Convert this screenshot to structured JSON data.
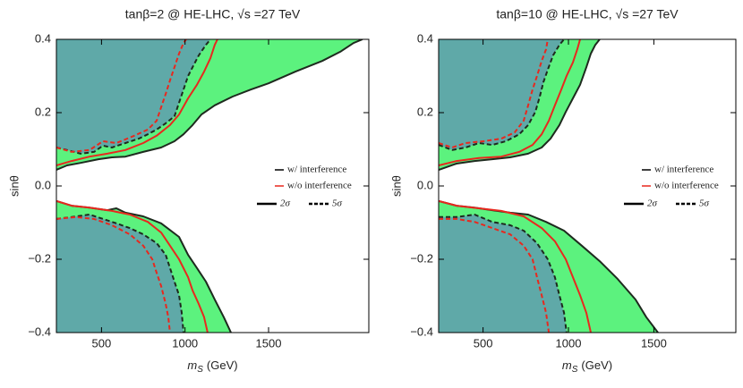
{
  "chart_data": [
    {
      "type": "contour",
      "title": "tanβ=2 @ HE-LHC, √s =27 TeV",
      "xlabel_symbol": "m",
      "xlabel_subscript": "S",
      "xlabel_unit": "(GeV)",
      "ylabel": "sinθ",
      "xlim": [
        230,
        2100
      ],
      "xticks": [
        500,
        1000,
        1500
      ],
      "ylim": [
        -0.4,
        0.4
      ],
      "yticks": [
        {
          "value": -0.4,
          "label": "−0.4"
        },
        {
          "value": -0.2,
          "label": "−0.2"
        },
        {
          "value": 0,
          "label": "0.0"
        },
        0.2,
        0.4
      ],
      "legend": [
        {
          "label": "w/  interference",
          "color": "#000000",
          "style": "solid"
        },
        {
          "label": "w/o interference",
          "color": "#e8281e",
          "style": "solid"
        },
        {
          "label": "2σ",
          "color": "#000000",
          "style": "solid"
        },
        {
          "label": "5σ",
          "color": "#000000",
          "style": "dashed"
        }
      ],
      "series": [
        {
          "color": "#1e2a1e",
          "fill": "#5cf27e",
          "fill_to": "top",
          "style": "solid",
          "x": [
            230,
            294,
            375,
            482,
            562,
            643,
            750,
            857,
            937,
            991,
            1045,
            1098,
            1178,
            1285,
            1393,
            1500,
            1661,
            1821,
            1929,
            2009,
            2062
          ],
          "values": [
            0.044,
            0.056,
            0.063,
            0.073,
            0.078,
            0.08,
            0.093,
            0.105,
            0.122,
            0.141,
            0.166,
            0.195,
            0.22,
            0.244,
            0.263,
            0.28,
            0.312,
            0.341,
            0.366,
            0.39,
            0.4
          ]
        },
        {
          "color": "#1e2a1e",
          "fill": "#5fa9a8",
          "fill_to": "top",
          "style": "dashed",
          "x": [
            230,
            294,
            375,
            455,
            509,
            562,
            643,
            723,
            777,
            830,
            884,
            937,
            964,
            991,
            1018,
            1045,
            1082,
            1125,
            1152
          ],
          "values": [
            0.105,
            0.098,
            0.088,
            0.093,
            0.11,
            0.105,
            0.117,
            0.129,
            0.141,
            0.154,
            0.171,
            0.19,
            0.227,
            0.263,
            0.3,
            0.324,
            0.356,
            0.385,
            0.4
          ]
        },
        {
          "color": "#1e2a1e",
          "fill": "#5cf27e",
          "fill_to": "bottom",
          "style": "solid",
          "x": [
            230,
            321,
            428,
            535,
            589,
            643,
            750,
            857,
            964,
            1018,
            1071,
            1125,
            1178,
            1232,
            1275
          ],
          "values": [
            -0.041,
            -0.054,
            -0.059,
            -0.066,
            -0.061,
            -0.073,
            -0.083,
            -0.102,
            -0.139,
            -0.188,
            -0.224,
            -0.261,
            -0.31,
            -0.358,
            -0.4
          ]
        },
        {
          "color": "#1e2a1e",
          "fill": "#5fa9a8",
          "fill_to": "bottom",
          "style": "dashed",
          "x": [
            230,
            321,
            428,
            509,
            589,
            669,
            750,
            830,
            884,
            910,
            937,
            964,
            980,
            991
          ],
          "values": [
            -0.09,
            -0.085,
            -0.078,
            -0.09,
            -0.102,
            -0.115,
            -0.132,
            -0.156,
            -0.188,
            -0.224,
            -0.261,
            -0.298,
            -0.346,
            -0.4
          ]
        },
        {
          "color": "#e8281e",
          "style": "solid",
          "x": [
            230,
            321,
            428,
            535,
            643,
            750,
            830,
            910,
            964,
            1018,
            1071,
            1114,
            1152,
            1178,
            1194
          ],
          "values": [
            0.056,
            0.068,
            0.08,
            0.088,
            0.098,
            0.117,
            0.137,
            0.166,
            0.195,
            0.239,
            0.276,
            0.312,
            0.349,
            0.385,
            0.4
          ]
        },
        {
          "color": "#e8281e",
          "style": "dashed",
          "x": [
            230,
            321,
            428,
            509,
            589,
            696,
            777,
            830,
            857,
            884,
            910,
            937,
            964,
            991,
            1007
          ],
          "values": [
            0.105,
            0.093,
            0.098,
            0.122,
            0.117,
            0.137,
            0.154,
            0.178,
            0.215,
            0.251,
            0.288,
            0.324,
            0.361,
            0.39,
            0.4
          ]
        },
        {
          "color": "#e8281e",
          "style": "solid",
          "x": [
            230,
            321,
            428,
            562,
            669,
            777,
            857,
            910,
            964,
            1018,
            1045,
            1082,
            1114,
            1135
          ],
          "values": [
            -0.041,
            -0.054,
            -0.059,
            -0.068,
            -0.078,
            -0.098,
            -0.127,
            -0.163,
            -0.2,
            -0.249,
            -0.285,
            -0.322,
            -0.358,
            -0.4
          ]
        },
        {
          "color": "#e8281e",
          "style": "dashed",
          "x": [
            230,
            348,
            455,
            562,
            669,
            750,
            804,
            830,
            857,
            884,
            900,
            910
          ],
          "values": [
            -0.09,
            -0.085,
            -0.09,
            -0.107,
            -0.132,
            -0.163,
            -0.2,
            -0.237,
            -0.273,
            -0.322,
            -0.358,
            -0.4
          ]
        }
      ]
    },
    {
      "type": "contour",
      "title": "tanβ=10 @ HE-LHC, √s =27 TeV",
      "xlabel_symbol": "m",
      "xlabel_subscript": "S",
      "xlabel_unit": "(GeV)",
      "ylabel": "sinθ",
      "xlim": [
        240,
        1980
      ],
      "xticks": [
        500,
        1000,
        1500
      ],
      "ylim": [
        -0.4,
        0.4
      ],
      "yticks": [
        {
          "value": -0.4,
          "label": "−0.4"
        },
        {
          "value": -0.2,
          "label": "−0.2"
        },
        {
          "value": 0,
          "label": "0.0"
        },
        0.2,
        0.4
      ],
      "legend": [
        {
          "label": "w/  interference",
          "color": "#000000",
          "style": "solid"
        },
        {
          "label": "w/o interference",
          "color": "#e8281e",
          "style": "solid"
        },
        {
          "label": "2σ",
          "color": "#000000",
          "style": "solid"
        },
        {
          "label": "5σ",
          "color": "#000000",
          "style": "dashed"
        }
      ],
      "series": [
        {
          "color": "#1e2a1e",
          "fill": "#5cf27e",
          "fill_to": "top",
          "style": "solid",
          "x": [
            240,
            345,
            450,
            554,
            659,
            764,
            843,
            895,
            947,
            984,
            1026,
            1068,
            1105,
            1131,
            1157,
            1183
          ],
          "values": [
            0.044,
            0.061,
            0.068,
            0.073,
            0.078,
            0.088,
            0.105,
            0.129,
            0.166,
            0.202,
            0.239,
            0.276,
            0.324,
            0.361,
            0.385,
            0.4
          ]
        },
        {
          "color": "#1e2a1e",
          "fill": "#5fa9a8",
          "fill_to": "top",
          "style": "dashed",
          "x": [
            240,
            319,
            397,
            476,
            554,
            633,
            712,
            764,
            806,
            832,
            853,
            879,
            910,
            947,
            974
          ],
          "values": [
            0.112,
            0.098,
            0.105,
            0.117,
            0.112,
            0.122,
            0.141,
            0.166,
            0.202,
            0.244,
            0.283,
            0.317,
            0.356,
            0.385,
            0.4
          ]
        },
        {
          "color": "#1e2a1e",
          "fill": "#5cf27e",
          "fill_to": "bottom",
          "style": "solid",
          "x": [
            240,
            345,
            450,
            554,
            659,
            764,
            869,
            974,
            1078,
            1183,
            1288,
            1393,
            1456,
            1524
          ],
          "values": [
            -0.041,
            -0.054,
            -0.059,
            -0.066,
            -0.073,
            -0.078,
            -0.098,
            -0.122,
            -0.163,
            -0.205,
            -0.254,
            -0.31,
            -0.358,
            -0.4
          ]
        },
        {
          "color": "#1e2a1e",
          "fill": "#5fa9a8",
          "fill_to": "bottom",
          "style": "dashed",
          "x": [
            240,
            345,
            450,
            554,
            659,
            738,
            816,
            879,
            921,
            947,
            974,
            989
          ],
          "values": [
            -0.085,
            -0.085,
            -0.078,
            -0.098,
            -0.107,
            -0.122,
            -0.156,
            -0.2,
            -0.249,
            -0.298,
            -0.346,
            -0.4
          ]
        },
        {
          "color": "#e8281e",
          "style": "solid",
          "x": [
            240,
            345,
            476,
            607,
            712,
            790,
            843,
            885,
            921,
            958,
            989,
            1026,
            1052,
            1068
          ],
          "values": [
            0.056,
            0.068,
            0.076,
            0.08,
            0.093,
            0.112,
            0.141,
            0.178,
            0.22,
            0.263,
            0.3,
            0.337,
            0.373,
            0.4
          ]
        },
        {
          "color": "#e8281e",
          "style": "dashed",
          "x": [
            240,
            319,
            397,
            502,
            607,
            685,
            738,
            764,
            790,
            816,
            843,
            869,
            879
          ],
          "values": [
            0.117,
            0.105,
            0.117,
            0.122,
            0.129,
            0.146,
            0.178,
            0.22,
            0.263,
            0.3,
            0.341,
            0.373,
            0.4
          ]
        },
        {
          "color": "#e8281e",
          "style": "solid",
          "x": [
            240,
            345,
            476,
            607,
            738,
            843,
            921,
            984,
            1026,
            1068,
            1105,
            1131
          ],
          "values": [
            -0.041,
            -0.054,
            -0.061,
            -0.068,
            -0.083,
            -0.115,
            -0.151,
            -0.2,
            -0.249,
            -0.298,
            -0.346,
            -0.4
          ]
        },
        {
          "color": "#e8281e",
          "style": "dashed",
          "x": [
            240,
            345,
            450,
            554,
            659,
            738,
            790,
            816,
            843,
            869,
            885
          ],
          "values": [
            -0.09,
            -0.09,
            -0.098,
            -0.115,
            -0.132,
            -0.163,
            -0.2,
            -0.249,
            -0.298,
            -0.346,
            -0.4
          ]
        }
      ]
    }
  ]
}
